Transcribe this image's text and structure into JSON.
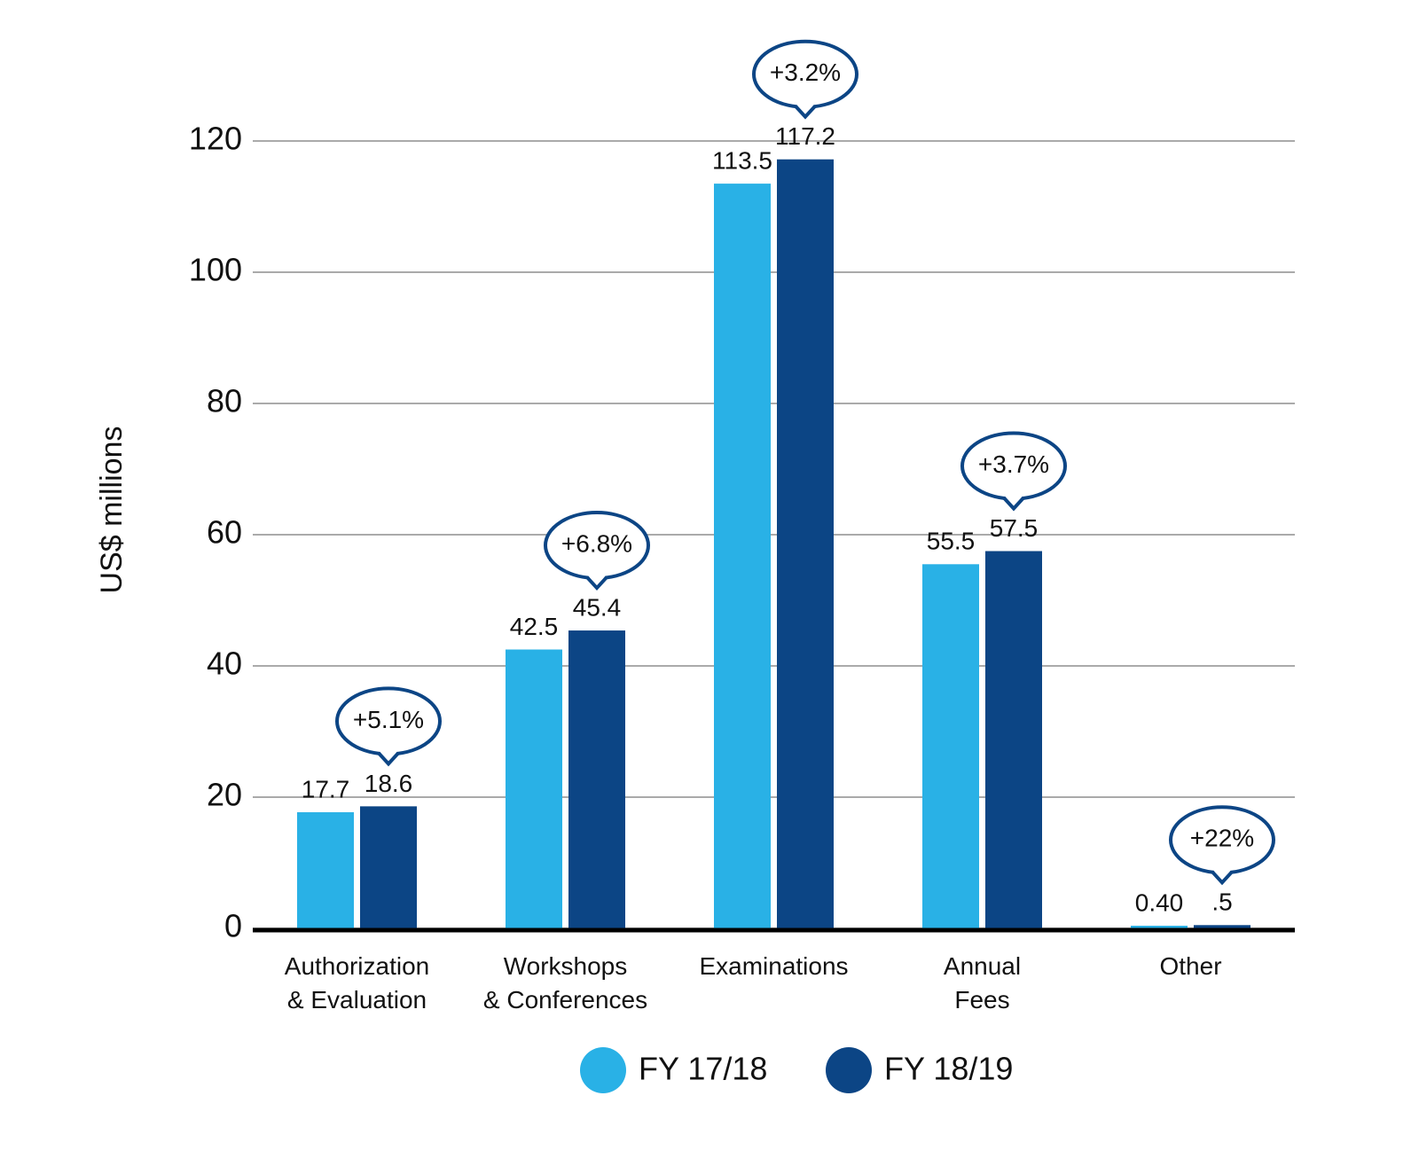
{
  "chart_data": {
    "type": "bar",
    "y_label": "US$ millions",
    "categories": [
      "Authorization\n& Evaluation",
      "Workshops\n& Conferences",
      "Examinations",
      "Annual\nFees",
      "Other"
    ],
    "series": [
      {
        "name": "FY 17/18",
        "color": "#29b1e6",
        "values": [
          17.7,
          42.5,
          113.5,
          55.5,
          0.4
        ],
        "value_labels": [
          "17.7",
          "42.5",
          "113.5",
          "55.5",
          "0.40"
        ]
      },
      {
        "name": "FY 18/19",
        "color": "#0c4585",
        "values": [
          18.6,
          45.4,
          117.2,
          57.5,
          0.5
        ],
        "value_labels": [
          "18.6",
          "45.4",
          "117.2",
          "57.5",
          ".5"
        ]
      }
    ],
    "annotations": [
      "+5.1%",
      "+6.8%",
      "+3.2%",
      "+3.7%",
      "+22%"
    ],
    "ylim": [
      0,
      120
    ],
    "yticks": [
      0,
      20,
      40,
      60,
      80,
      100,
      120
    ],
    "grid": true,
    "legend": "bottom"
  }
}
